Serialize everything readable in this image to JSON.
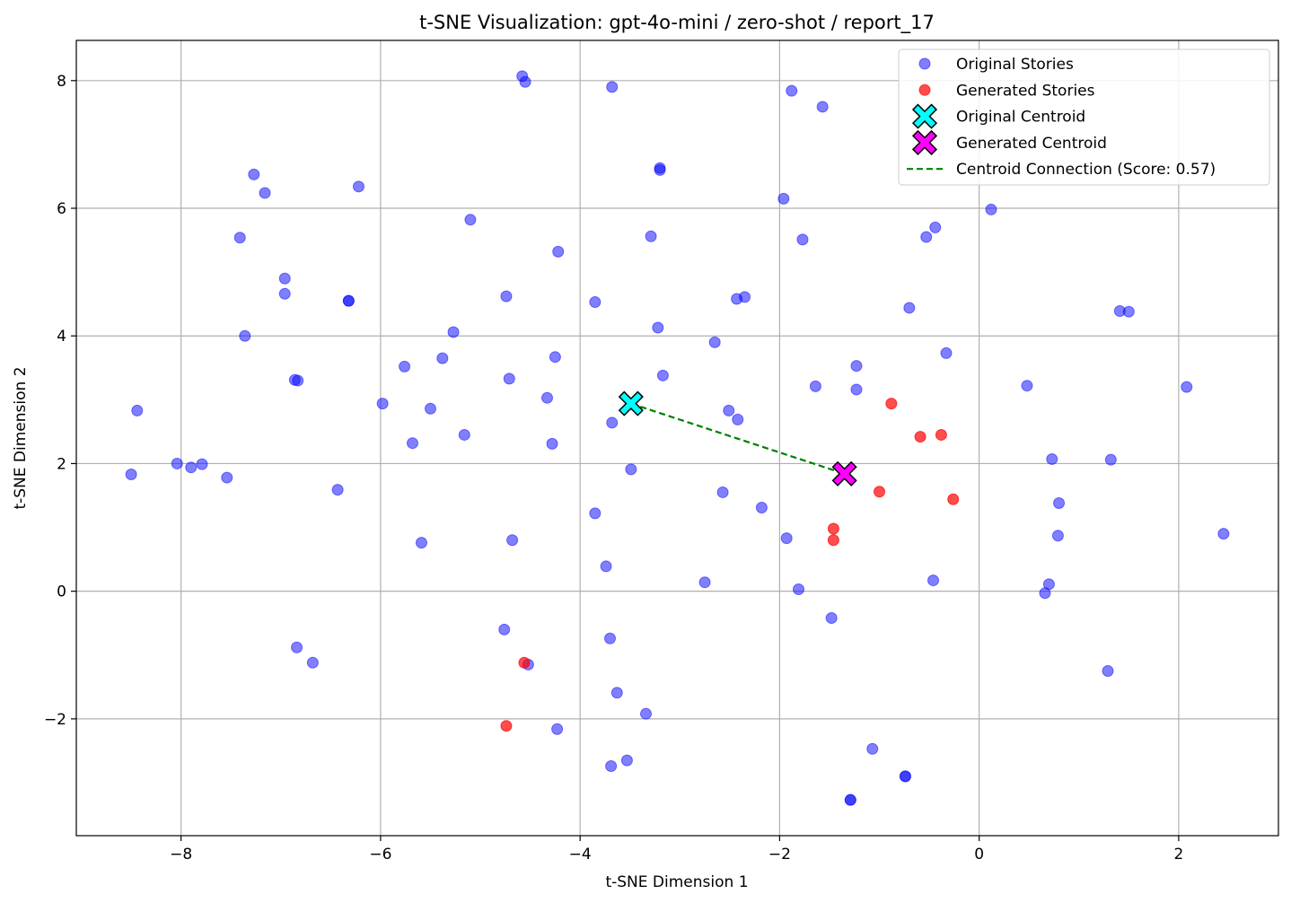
{
  "chart_data": {
    "type": "scatter",
    "title": "t-SNE Visualization: gpt-4o-mini / zero-shot / report_17",
    "xlabel": "t-SNE Dimension 1",
    "ylabel": "t-SNE Dimension 2",
    "xlim": [
      -9.05,
      3.0
    ],
    "ylim": [
      -3.83,
      8.63
    ],
    "xticks": [
      -8,
      -6,
      -4,
      -2,
      0,
      2
    ],
    "yticks": [
      -2,
      0,
      2,
      4,
      6,
      8
    ],
    "xtick_labels": [
      "−8",
      "−6",
      "−4",
      "−2",
      "0",
      "2"
    ],
    "ytick_labels": [
      "−2",
      "0",
      "2",
      "4",
      "6",
      "8"
    ],
    "grid": true,
    "legend_position": "top-right",
    "colors": {
      "original": "#0000ff",
      "generated": "#ff0000",
      "original_centroid": "#00ffff",
      "generated_centroid": "#ff00ff",
      "connection": "#008000"
    },
    "series": [
      {
        "name": "Original Stories",
        "points": [
          [
            -4.58,
            8.07
          ],
          [
            -4.55,
            7.98
          ],
          [
            -3.68,
            7.9
          ],
          [
            -1.88,
            7.84
          ],
          [
            -1.57,
            7.59
          ],
          [
            -3.2,
            6.63
          ],
          [
            -3.2,
            6.6
          ],
          [
            -7.27,
            6.53
          ],
          [
            -6.22,
            6.34
          ],
          [
            -7.16,
            6.24
          ],
          [
            -1.96,
            6.15
          ],
          [
            0.12,
            5.98
          ],
          [
            -5.1,
            5.82
          ],
          [
            -0.44,
            5.7
          ],
          [
            -3.29,
            5.56
          ],
          [
            -7.41,
            5.54
          ],
          [
            -0.53,
            5.55
          ],
          [
            -1.77,
            5.51
          ],
          [
            -4.22,
            5.32
          ],
          [
            -6.96,
            4.9
          ],
          [
            -6.96,
            4.66
          ],
          [
            -4.74,
            4.62
          ],
          [
            -2.35,
            4.61
          ],
          [
            -2.43,
            4.58
          ],
          [
            -6.32,
            4.55
          ],
          [
            -6.32,
            4.55
          ],
          [
            -3.85,
            4.53
          ],
          [
            -0.7,
            4.44
          ],
          [
            1.41,
            4.39
          ],
          [
            1.5,
            4.38
          ],
          [
            -3.22,
            4.13
          ],
          [
            -5.27,
            4.06
          ],
          [
            -7.36,
            4.0
          ],
          [
            -2.65,
            3.9
          ],
          [
            -0.33,
            3.73
          ],
          [
            -4.25,
            3.67
          ],
          [
            -5.38,
            3.65
          ],
          [
            -5.76,
            3.52
          ],
          [
            -1.23,
            3.53
          ],
          [
            -3.17,
            3.38
          ],
          [
            -4.71,
            3.33
          ],
          [
            -6.86,
            3.31
          ],
          [
            -6.83,
            3.3
          ],
          [
            2.08,
            3.2
          ],
          [
            0.48,
            3.22
          ],
          [
            -1.64,
            3.21
          ],
          [
            -1.23,
            3.16
          ],
          [
            -4.33,
            3.03
          ],
          [
            -5.98,
            2.94
          ],
          [
            -8.44,
            2.83
          ],
          [
            -5.5,
            2.86
          ],
          [
            -2.51,
            2.83
          ],
          [
            -2.42,
            2.69
          ],
          [
            -3.68,
            2.64
          ],
          [
            -5.16,
            2.45
          ],
          [
            -5.68,
            2.32
          ],
          [
            -4.28,
            2.31
          ],
          [
            0.73,
            2.07
          ],
          [
            1.32,
            2.06
          ],
          [
            -8.04,
            2.0
          ],
          [
            -7.79,
            1.99
          ],
          [
            -7.9,
            1.94
          ],
          [
            -3.49,
            1.91
          ],
          [
            -8.5,
            1.83
          ],
          [
            -7.54,
            1.78
          ],
          [
            -6.43,
            1.59
          ],
          [
            -2.57,
            1.55
          ],
          [
            0.8,
            1.38
          ],
          [
            -2.18,
            1.31
          ],
          [
            -3.85,
            1.22
          ],
          [
            0.79,
            0.87
          ],
          [
            -1.93,
            0.83
          ],
          [
            -4.68,
            0.8
          ],
          [
            -5.59,
            0.76
          ],
          [
            -3.74,
            0.39
          ],
          [
            -0.46,
            0.17
          ],
          [
            -2.75,
            0.14
          ],
          [
            0.7,
            0.11
          ],
          [
            -1.81,
            0.03
          ],
          [
            0.66,
            -0.03
          ],
          [
            -1.48,
            -0.42
          ],
          [
            -4.76,
            -0.6
          ],
          [
            -3.7,
            -0.74
          ],
          [
            -6.84,
            -0.88
          ],
          [
            -6.68,
            -1.12
          ],
          [
            -4.52,
            -1.15
          ],
          [
            1.29,
            -1.25
          ],
          [
            -3.63,
            -1.59
          ],
          [
            -3.34,
            -1.92
          ],
          [
            -4.23,
            -2.16
          ],
          [
            -1.07,
            -2.47
          ],
          [
            -3.53,
            -2.65
          ],
          [
            -3.69,
            -2.74
          ],
          [
            -0.74,
            -2.9
          ],
          [
            -0.74,
            -2.9
          ],
          [
            -1.29,
            -3.27
          ],
          [
            -1.29,
            -3.27
          ],
          [
            2.45,
            0.9
          ]
        ]
      },
      {
        "name": "Generated Stories",
        "points": [
          [
            -0.88,
            2.94
          ],
          [
            -0.38,
            2.45
          ],
          [
            -0.59,
            2.42
          ],
          [
            -1.0,
            1.56
          ],
          [
            -0.26,
            1.44
          ],
          [
            -1.46,
            0.98
          ],
          [
            -1.46,
            0.8
          ],
          [
            -4.56,
            -1.12
          ],
          [
            -4.74,
            -2.11
          ]
        ]
      }
    ],
    "centroids": [
      {
        "name": "Original Centroid",
        "x": -3.49,
        "y": 2.94
      },
      {
        "name": "Generated Centroid",
        "x": -1.35,
        "y": 1.84
      }
    ],
    "connection": {
      "name": "Centroid Connection (Score: 0.57)"
    }
  }
}
